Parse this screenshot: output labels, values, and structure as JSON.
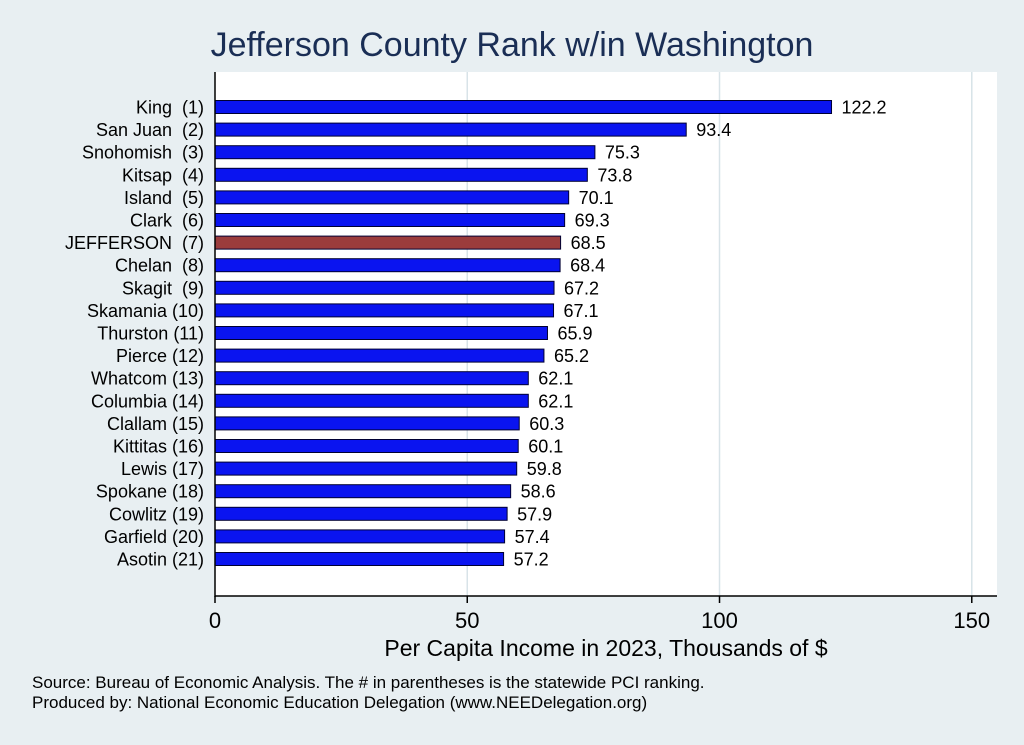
{
  "chart_data": {
    "type": "bar",
    "orientation": "horizontal",
    "title": "Jefferson County Rank w/in Washington",
    "xlabel": "Per Capita Income in 2023, Thousands of $",
    "ylabel": "",
    "xlim": [
      0,
      155
    ],
    "xticks": [
      0,
      50,
      100,
      150
    ],
    "categories": [
      "King  (1)",
      "San Juan  (2)",
      "Snohomish  (3)",
      "Kitsap  (4)",
      "Island  (5)",
      "Clark  (6)",
      "JEFFERSON  (7)",
      "Chelan  (8)",
      "Skagit  (9)",
      "Skamania (10)",
      "Thurston (11)",
      "Pierce (12)",
      "Whatcom (13)",
      "Columbia (14)",
      "Clallam (15)",
      "Kittitas (16)",
      "Lewis (17)",
      "Spokane (18)",
      "Cowlitz (19)",
      "Garfield (20)",
      "Asotin (21)"
    ],
    "values": [
      122.2,
      93.4,
      75.3,
      73.8,
      70.1,
      69.3,
      68.5,
      68.4,
      67.2,
      67.1,
      65.9,
      65.2,
      62.1,
      62.1,
      60.3,
      60.1,
      59.8,
      58.6,
      57.9,
      57.4,
      57.2
    ],
    "highlight_index": 6,
    "colors": {
      "bar": "#0a14f0",
      "highlight": "#9b3c3c",
      "bar_edge": "#000033",
      "plot_bg": "#ffffff",
      "page_bg": "#e8eff2"
    }
  },
  "footnotes": {
    "source": "Source: Bureau of Economic Analysis. The # in parentheses is the statewide PCI ranking.",
    "producer": "Produced by: National Economic Education Delegation (www.NEEDelegation.org)"
  }
}
